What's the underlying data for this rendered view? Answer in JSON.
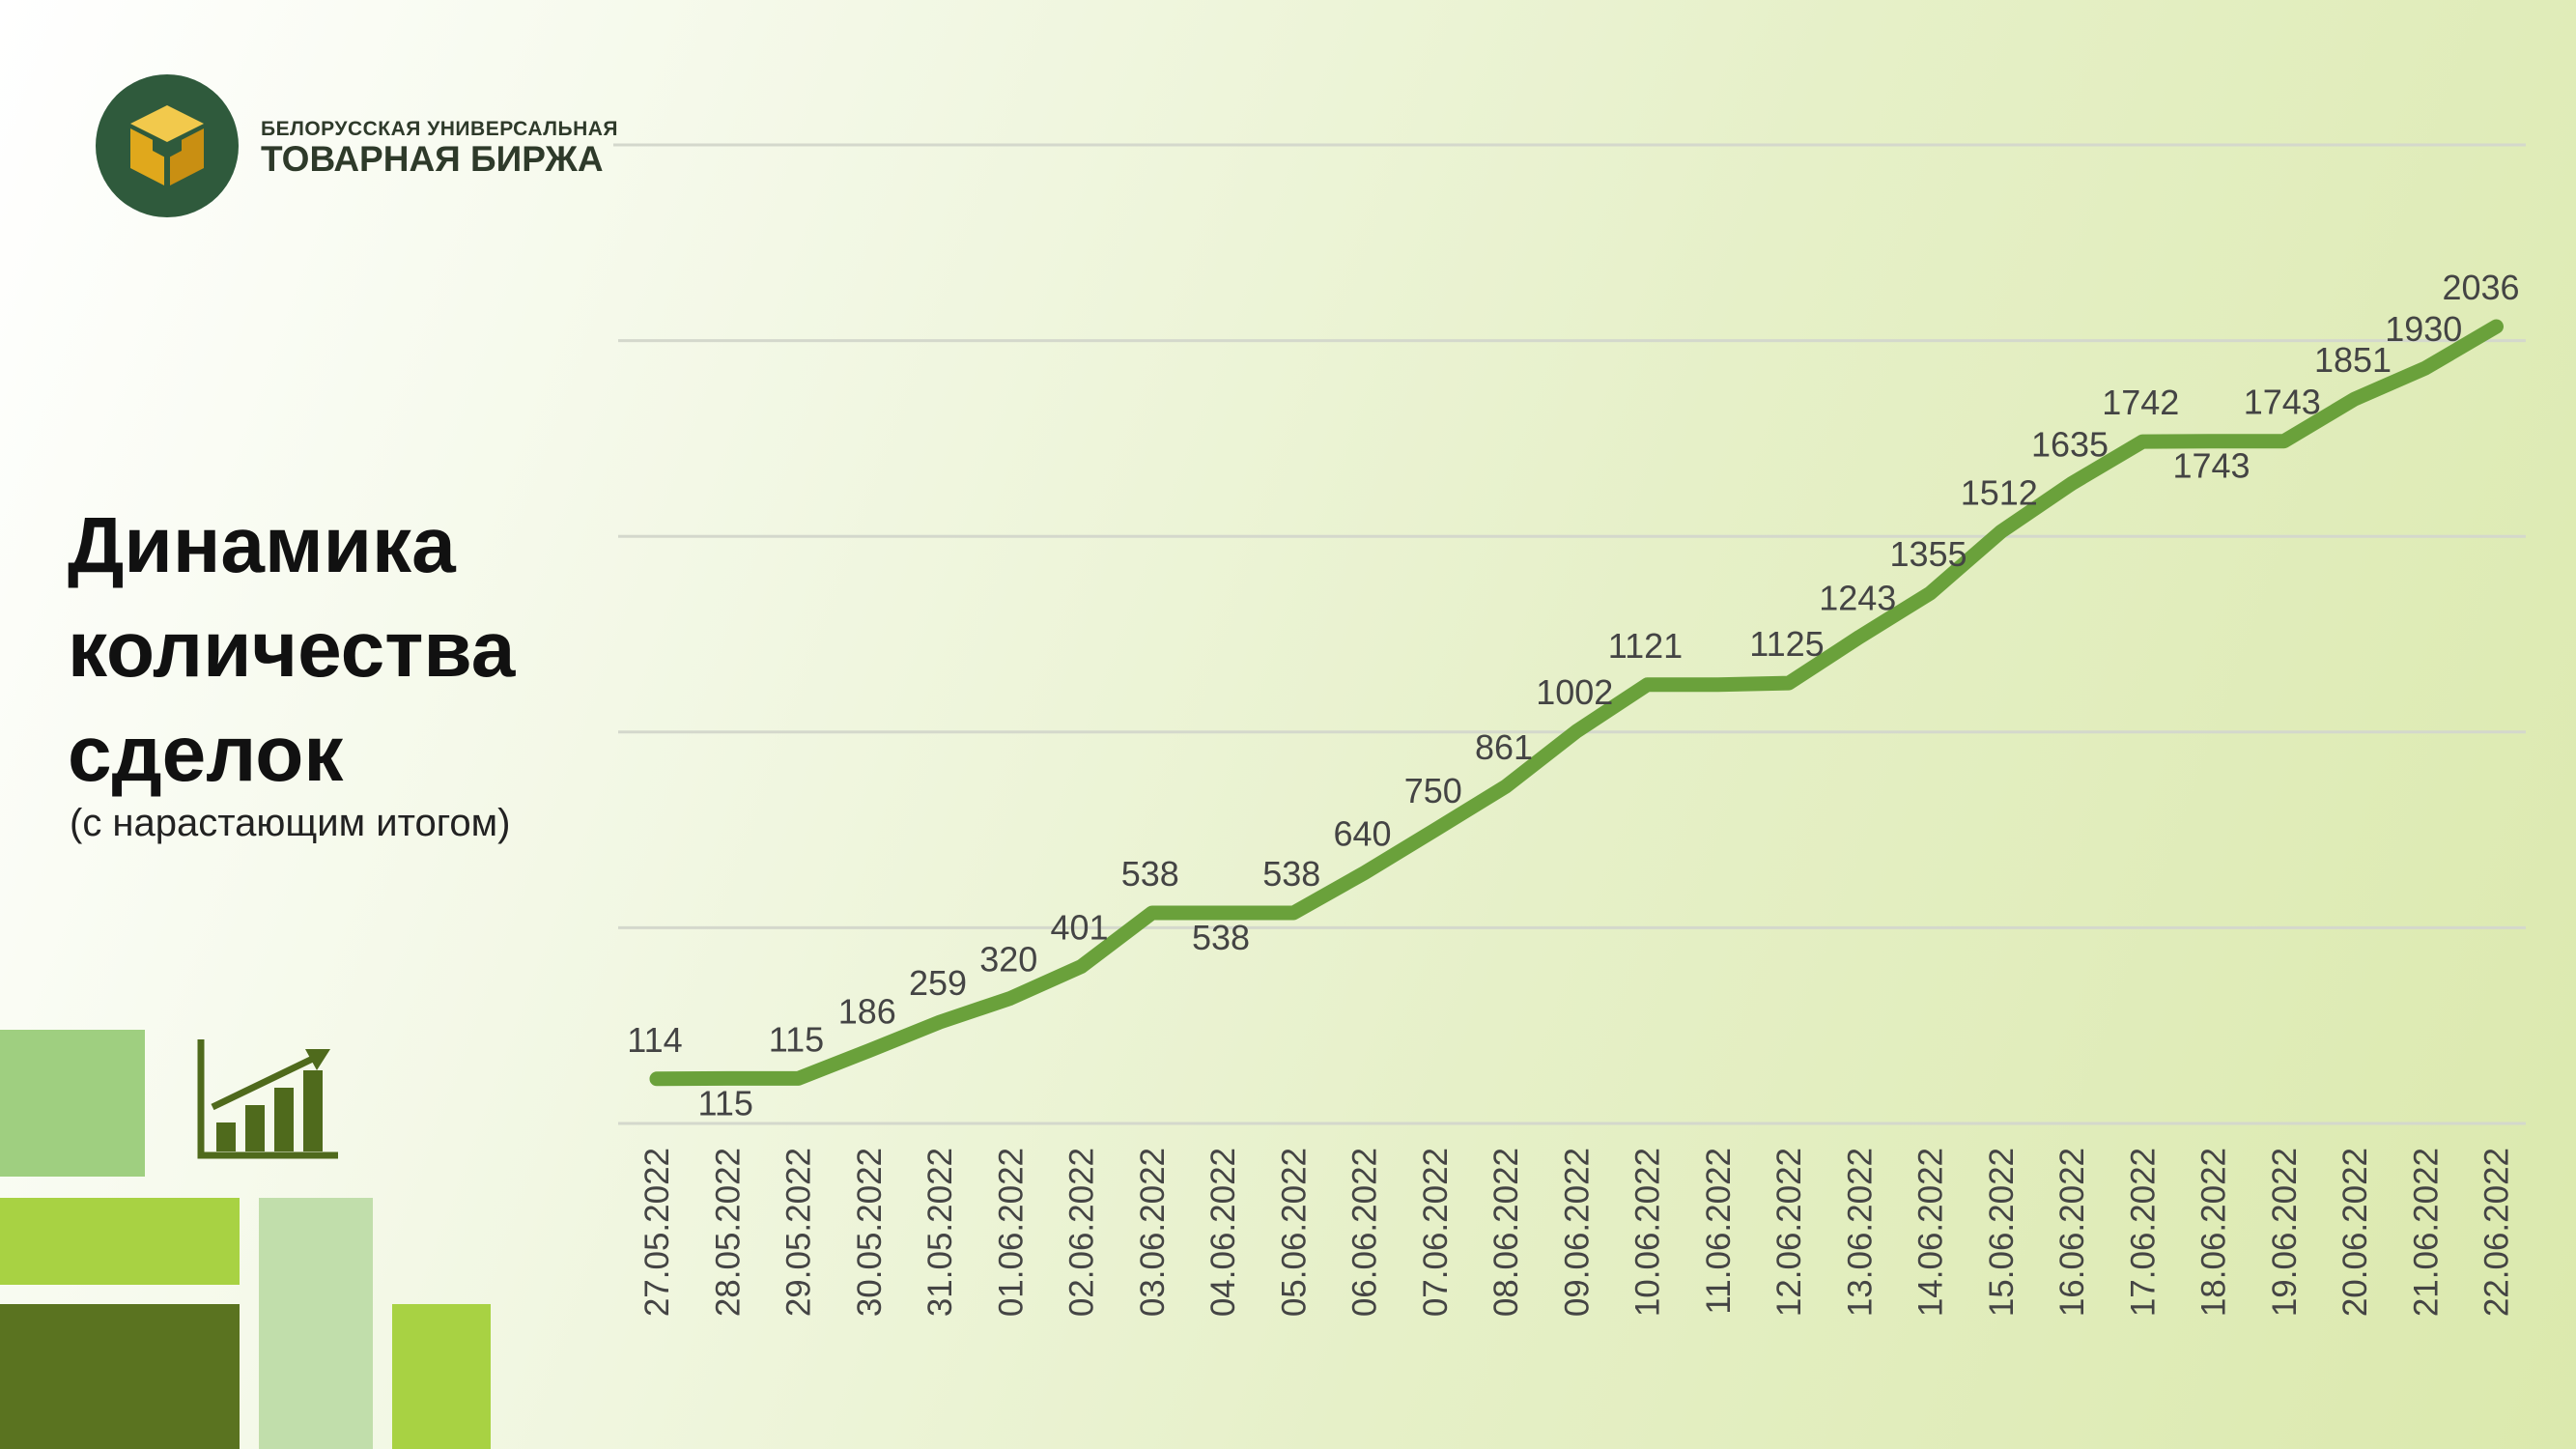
{
  "header": {
    "logo_line1": "БЕЛОРУССКАЯ УНИВЕРСАЛЬНАЯ",
    "logo_line2": "ТОВАРНАЯ БИРЖА"
  },
  "title_lines": [
    "Динамика",
    "количества",
    "сделок"
  ],
  "subtitle": "(с нарастающим итогом)",
  "colors": {
    "line": "#6aa13b",
    "logo_circle": "#2f5a3c",
    "logo_cube": "#e8b422",
    "block_light": "#9fcf80",
    "block_lime": "#a8d243",
    "block_dark": "#5a7320",
    "block_pale": "#c1deab"
  },
  "icons": [
    "exchange-logo-icon",
    "growth-chart-icon"
  ],
  "chart_data": {
    "type": "line",
    "categories": [
      "27.05.2022",
      "28.05.2022",
      "29.05.2022",
      "30.05.2022",
      "31.05.2022",
      "01.06.2022",
      "02.06.2022",
      "03.06.2022",
      "04.06.2022",
      "05.06.2022",
      "06.06.2022",
      "07.06.2022",
      "08.06.2022",
      "09.06.2022",
      "10.06.2022",
      "11.06.2022",
      "12.06.2022",
      "13.06.2022",
      "14.06.2022",
      "15.06.2022",
      "16.06.2022",
      "17.06.2022",
      "18.06.2022",
      "19.06.2022",
      "20.06.2022",
      "21.06.2022",
      "22.06.2022"
    ],
    "values": [
      114,
      115,
      115,
      186,
      259,
      320,
      401,
      538,
      538,
      538,
      640,
      750,
      861,
      1002,
      1121,
      1121,
      1125,
      1243,
      1355,
      1512,
      1635,
      1742,
      1743,
      1743,
      1851,
      1930,
      2036
    ],
    "data_labels": [
      "114",
      "115",
      "115",
      "186",
      "259",
      "320",
      "401",
      "538",
      "538",
      "538",
      "640",
      "750",
      "861",
      "1002",
      "1121",
      "",
      "1125",
      "1243",
      "1355",
      "1512",
      "1635",
      "1742",
      "1743",
      "1743",
      "1851",
      "1930",
      "2036"
    ],
    "ylim": [
      0,
      2500
    ],
    "grid": true,
    "legend": "none",
    "title": "",
    "xlabel": "",
    "ylabel": ""
  }
}
